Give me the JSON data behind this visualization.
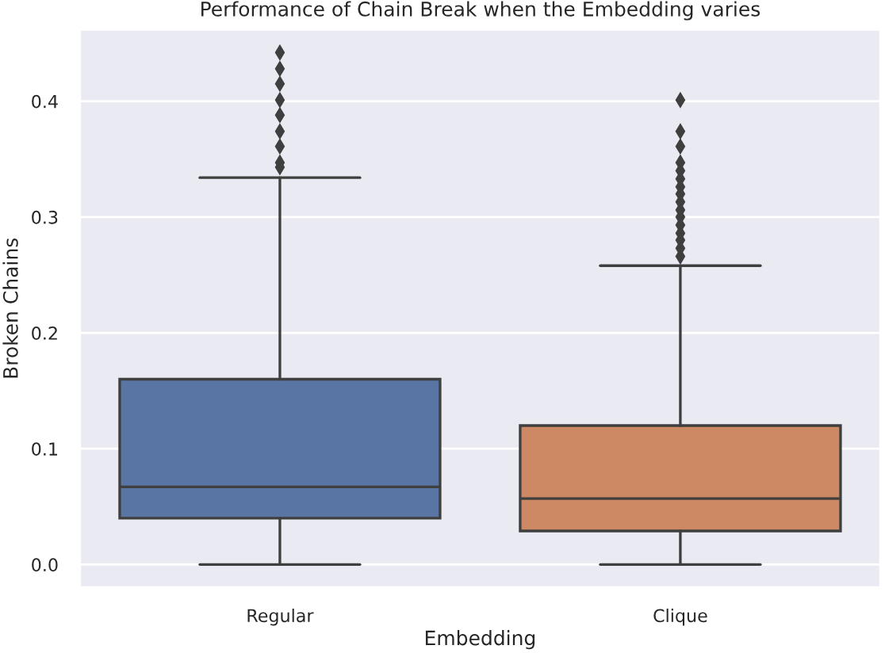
{
  "chart_data": {
    "type": "box",
    "title": "Performance of Chain Break when the Embedding varies",
    "xlabel": "Embedding",
    "ylabel": "Broken Chains",
    "categories": [
      "Regular",
      "Clique"
    ],
    "colors": [
      "#5975a4",
      "#cc8963"
    ],
    "boxes": [
      {
        "low": 0.0,
        "q1": 0.04,
        "median": 0.067,
        "q3": 0.16,
        "high": 0.334,
        "outliers": [
          0.343,
          0.347,
          0.361,
          0.374,
          0.388,
          0.401,
          0.415,
          0.428,
          0.442
        ]
      },
      {
        "low": 0.0,
        "q1": 0.029,
        "median": 0.057,
        "q3": 0.12,
        "high": 0.258,
        "outliers": [
          0.266,
          0.273,
          0.28,
          0.286,
          0.293,
          0.3,
          0.306,
          0.313,
          0.32,
          0.326,
          0.333,
          0.34,
          0.347,
          0.361,
          0.374,
          0.401
        ]
      }
    ],
    "ylim": [
      -0.02,
      0.462
    ],
    "yticks": [
      {
        "value": 0,
        "label": "0.0"
      },
      0.1,
      0.2,
      0.3,
      0.4
    ],
    "grid": "y"
  }
}
